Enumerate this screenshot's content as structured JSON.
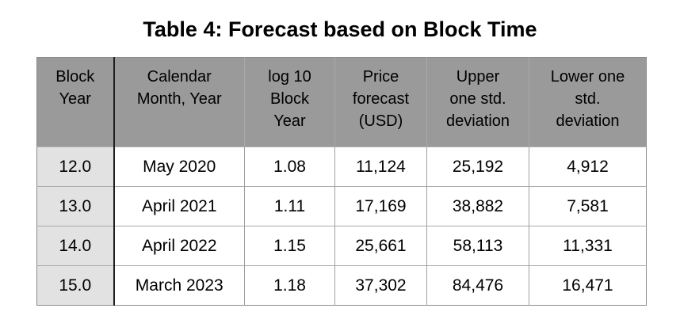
{
  "title": "Table 4: Forecast based on Block Time",
  "table": {
    "headers": [
      "Block\nYear",
      "Calendar\nMonth, Year",
      "log 10\nBlock\nYear",
      "Price\nforecast\n(USD)",
      "Upper\none std.\ndeviation",
      "Lower one\nstd.\ndeviation"
    ],
    "rows": [
      [
        "12.0",
        "May 2020",
        "1.08",
        "11,124",
        "25,192",
        "4,912"
      ],
      [
        "13.0",
        "April 2021",
        "1.11",
        "17,169",
        "38,882",
        "7,581"
      ],
      [
        "14.0",
        "April 2022",
        "1.15",
        "25,661",
        "58,113",
        "11,331"
      ],
      [
        "15.0",
        "March 2023",
        "1.18",
        "37,302",
        "84,476",
        "16,471"
      ]
    ]
  },
  "colors": {
    "header_bg": "#9a9a9a",
    "row_label_bg": "#e2e2e2",
    "body_bg": "#ffffff",
    "dark_divider": "#1f1f1f",
    "grid_line": "#9f9f9f",
    "text": "#000000"
  }
}
